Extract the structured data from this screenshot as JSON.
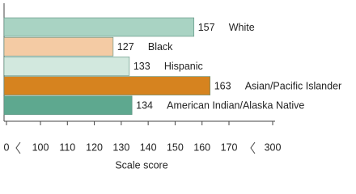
{
  "chart_data": {
    "type": "bar",
    "orientation": "horizontal",
    "categories": [
      "White",
      "Black",
      "Hispanic",
      "Asian/Pacific Islander",
      "American Indian/Alaska Native"
    ],
    "values": [
      157,
      127,
      133,
      163,
      134
    ],
    "colors": [
      "#a9d3c3",
      "#f4cba4",
      "#d2e8de",
      "#d6831f",
      "#5ea88f"
    ],
    "x_label": "Scale score",
    "xlim": [
      0,
      300
    ],
    "x_breaks": [
      [
        0,
        100
      ],
      [
        170,
        300
      ]
    ],
    "xticks": [
      0,
      100,
      110,
      120,
      130,
      140,
      150,
      160,
      170,
      300
    ]
  }
}
